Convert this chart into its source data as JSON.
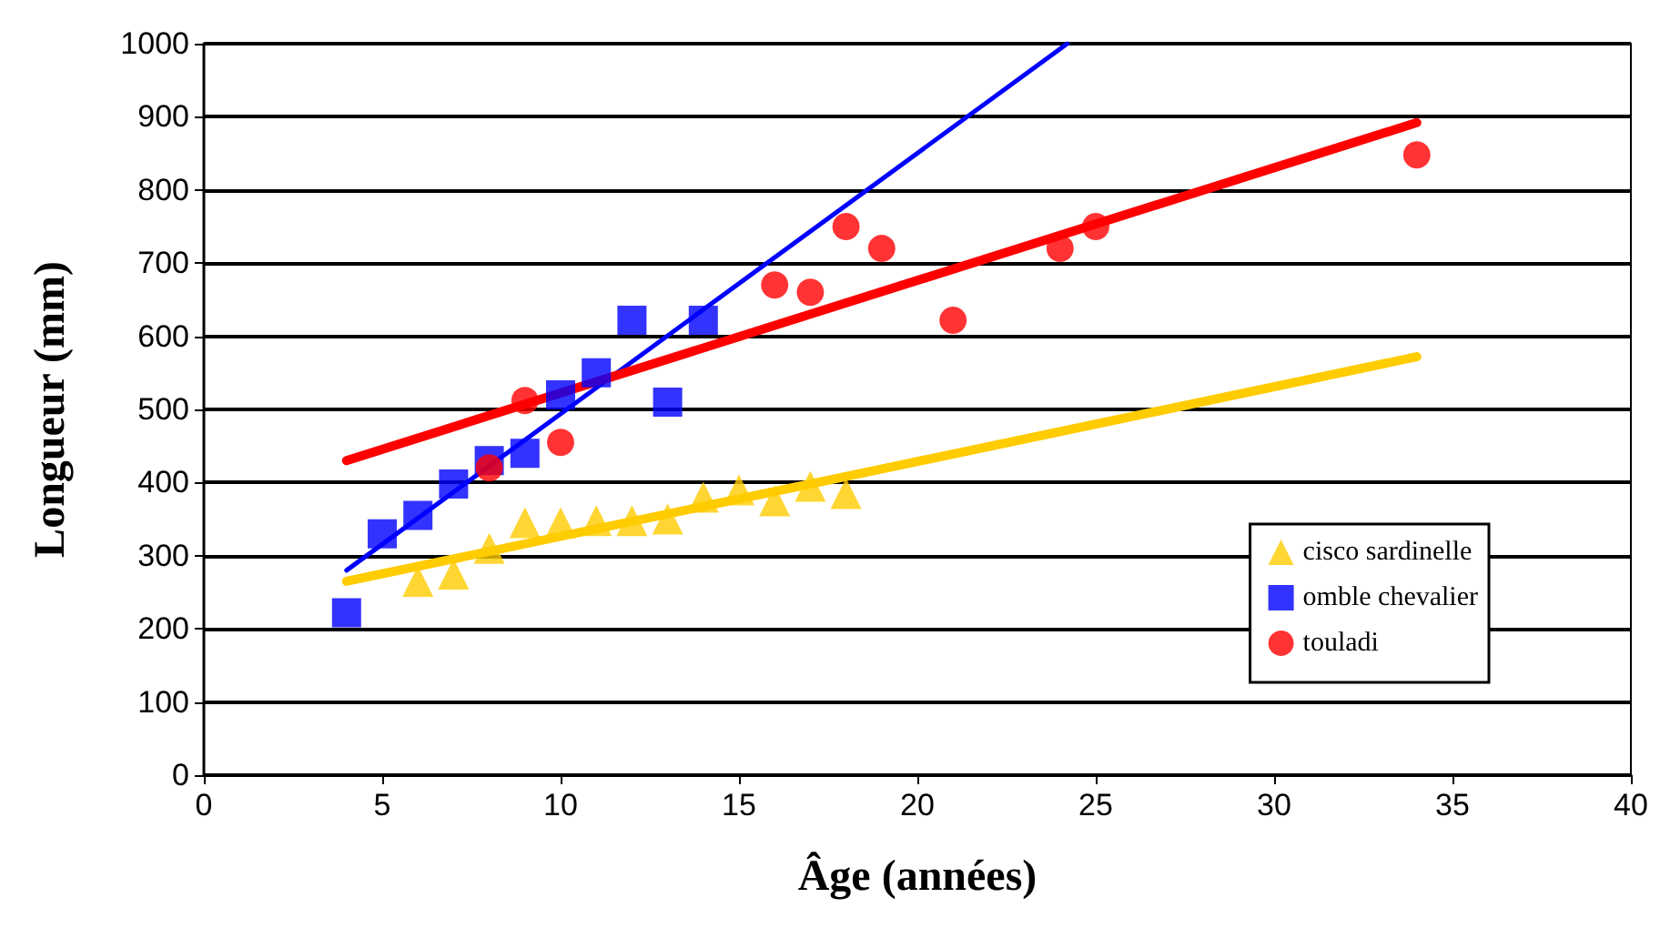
{
  "chart_data": {
    "type": "scatter",
    "xlabel": "Âge (années)",
    "ylabel": "Longueur (mm)",
    "xlim": [
      0,
      40
    ],
    "xticks": [
      0,
      5,
      10,
      15,
      20,
      25,
      30,
      35,
      40
    ],
    "ylim": [
      0,
      1000
    ],
    "yticks": [
      0,
      100,
      200,
      300,
      400,
      500,
      600,
      700,
      800,
      900,
      1000
    ],
    "grid": "y",
    "legend": "bottom right",
    "series": [
      {
        "name": "cisco sardinelle",
        "marker": "triangle",
        "color": "#ffcc00",
        "x": [
          6,
          7,
          8,
          9,
          10,
          11,
          12,
          13,
          14,
          15,
          16,
          17,
          18
        ],
        "values": [
          265,
          275,
          310,
          345,
          345,
          348,
          348,
          350,
          380,
          390,
          375,
          395,
          385
        ]
      },
      {
        "name": "omble chevalier",
        "marker": "square",
        "color": "#0000ff",
        "x": [
          4,
          5,
          6,
          7,
          8,
          9,
          10,
          11,
          12,
          13,
          14
        ],
        "values": [
          222,
          330,
          355,
          398,
          430,
          440,
          520,
          550,
          622,
          510,
          622
        ]
      },
      {
        "name": "touladi",
        "marker": "circle",
        "color": "#ff0000",
        "x": [
          8,
          9,
          10,
          16,
          17,
          18,
          19,
          21,
          24,
          25,
          34
        ],
        "values": [
          420,
          512,
          455,
          670,
          660,
          750,
          720,
          622,
          720,
          750,
          848
        ]
      },
      {
        "type": "line",
        "marker": "none",
        "color": "#ffcc00",
        "x": [
          4,
          34
        ],
        "values": [
          265,
          572
        ]
      },
      {
        "type": "line",
        "marker": "none",
        "color": "#0000ff",
        "x": [
          4,
          24.2
        ],
        "values": [
          280,
          1000
        ]
      },
      {
        "type": "line",
        "marker": "none",
        "color": "#ff0000",
        "x": [
          4,
          34
        ],
        "values": [
          430,
          892
        ]
      }
    ]
  }
}
